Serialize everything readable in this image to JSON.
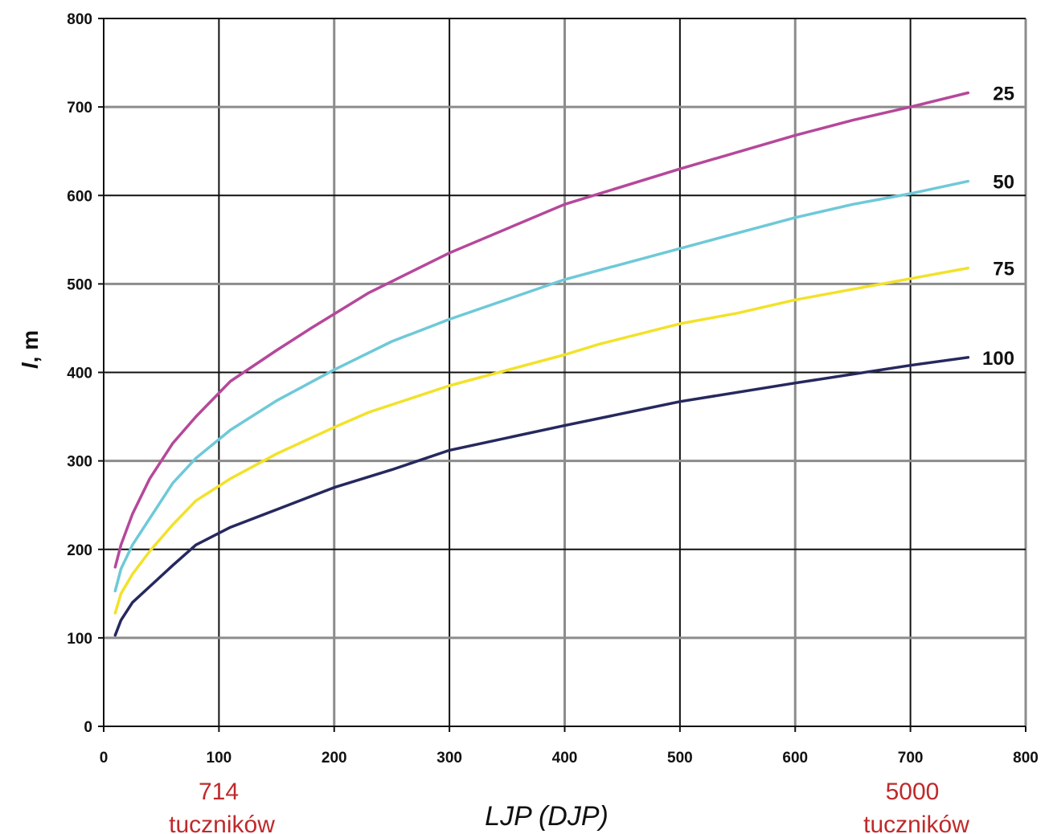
{
  "chart_data": {
    "type": "line",
    "xlabel": "LJP (DJP)",
    "ylabel_italic": "l",
    "ylabel_rest": ", m",
    "xlim": [
      0,
      800
    ],
    "ylim": [
      0,
      800
    ],
    "xticks": [
      0,
      100,
      200,
      300,
      400,
      500,
      600,
      700,
      800
    ],
    "yticks": [
      0,
      100,
      200,
      300,
      400,
      500,
      600,
      700,
      800
    ],
    "grid": true,
    "series": [
      {
        "name": "25",
        "color": "#b5489a",
        "points": [
          [
            10,
            180
          ],
          [
            15,
            205
          ],
          [
            25,
            240
          ],
          [
            40,
            280
          ],
          [
            60,
            320
          ],
          [
            80,
            350
          ],
          [
            110,
            390
          ],
          [
            150,
            425
          ],
          [
            180,
            450
          ],
          [
            230,
            490
          ],
          [
            300,
            535
          ],
          [
            400,
            590
          ],
          [
            500,
            630
          ],
          [
            600,
            668
          ],
          [
            650,
            685
          ],
          [
            700,
            700
          ],
          [
            750,
            716
          ]
        ]
      },
      {
        "name": "50",
        "color": "#6ec9d8",
        "points": [
          [
            10,
            153
          ],
          [
            15,
            178
          ],
          [
            25,
            205
          ],
          [
            40,
            235
          ],
          [
            60,
            275
          ],
          [
            80,
            303
          ],
          [
            110,
            335
          ],
          [
            150,
            368
          ],
          [
            200,
            403
          ],
          [
            250,
            435
          ],
          [
            300,
            460
          ],
          [
            400,
            505
          ],
          [
            500,
            540
          ],
          [
            600,
            575
          ],
          [
            650,
            590
          ],
          [
            700,
            602
          ],
          [
            750,
            616
          ]
        ]
      },
      {
        "name": "75",
        "color": "#f2e22a",
        "points": [
          [
            10,
            128
          ],
          [
            15,
            150
          ],
          [
            25,
            172
          ],
          [
            40,
            198
          ],
          [
            60,
            228
          ],
          [
            80,
            255
          ],
          [
            110,
            280
          ],
          [
            150,
            308
          ],
          [
            200,
            338
          ],
          [
            230,
            355
          ],
          [
            300,
            385
          ],
          [
            400,
            420
          ],
          [
            430,
            432
          ],
          [
            500,
            455
          ],
          [
            550,
            467
          ],
          [
            600,
            482
          ],
          [
            700,
            506
          ],
          [
            750,
            518
          ]
        ]
      },
      {
        "name": "100",
        "color": "#26285e",
        "points": [
          [
            10,
            103
          ],
          [
            15,
            120
          ],
          [
            25,
            140
          ],
          [
            40,
            158
          ],
          [
            60,
            182
          ],
          [
            80,
            205
          ],
          [
            110,
            225
          ],
          [
            150,
            245
          ],
          [
            200,
            270
          ],
          [
            250,
            290
          ],
          [
            300,
            312
          ],
          [
            400,
            340
          ],
          [
            500,
            367
          ],
          [
            600,
            388
          ],
          [
            700,
            408
          ],
          [
            750,
            417
          ]
        ]
      }
    ]
  },
  "annotations": {
    "left_value": "714",
    "left_unit": "tuczników",
    "right_value": "5000",
    "right_unit": "tuczników",
    "color": "#c0292b"
  }
}
